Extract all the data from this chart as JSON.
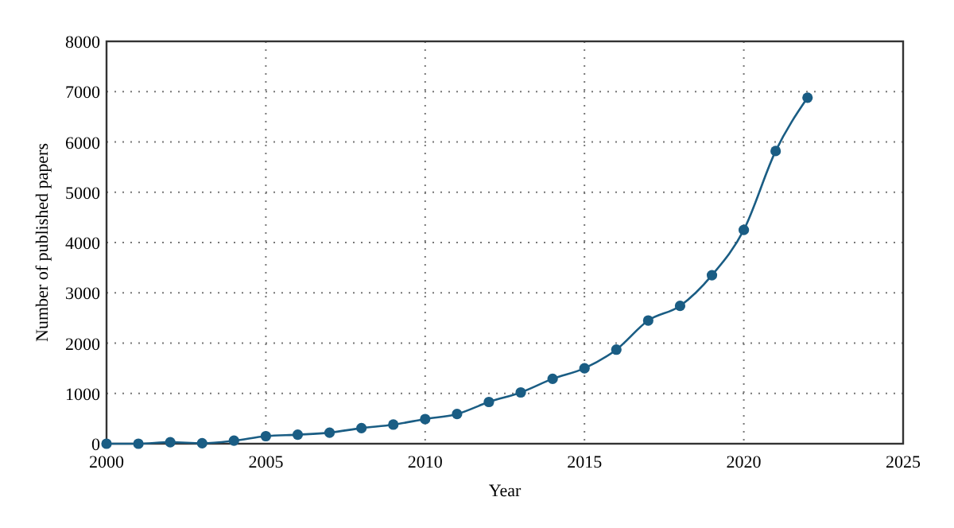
{
  "chart_data": {
    "type": "line",
    "xlabel": "Year",
    "ylabel": "Number of published papers",
    "x": [
      2000,
      2001,
      2002,
      2003,
      2004,
      2005,
      2006,
      2007,
      2008,
      2009,
      2010,
      2011,
      2012,
      2013,
      2014,
      2015,
      2016,
      2017,
      2018,
      2019,
      2020,
      2021,
      2022
    ],
    "series": [
      {
        "color": "#1a5d84",
        "values": [
          0,
          0,
          30,
          10,
          60,
          150,
          180,
          220,
          310,
          380,
          490,
          590,
          830,
          1020,
          1290,
          1500,
          1870,
          2450,
          2740,
          3350,
          4250,
          5820,
          6880
        ]
      }
    ],
    "xlim": [
      2000,
      2025
    ],
    "xticks": [
      2000,
      2005,
      2010,
      2015,
      2020,
      2025
    ],
    "ylim": [
      0,
      8000
    ],
    "yticks": [
      0,
      1000,
      2000,
      3000,
      4000,
      5000,
      6000,
      7000,
      8000
    ],
    "grid": true,
    "marker": "circle",
    "line_style": "solid"
  }
}
